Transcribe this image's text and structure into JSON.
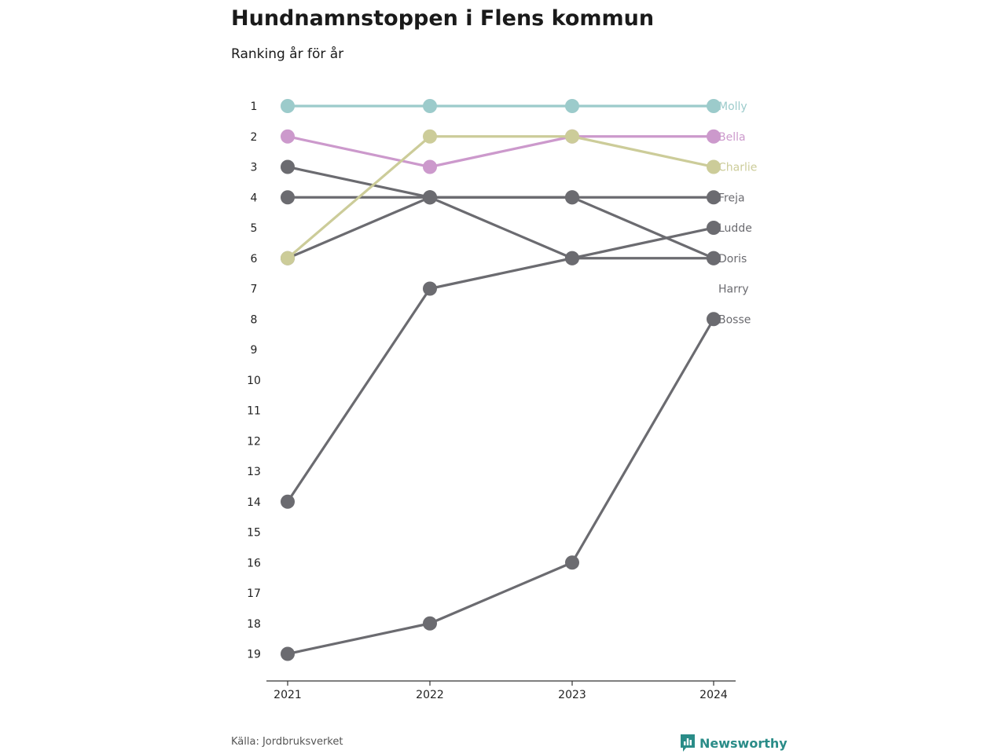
{
  "chart_data": {
    "type": "line",
    "title": "Hundnamnstoppen i Flens kommun",
    "subtitle": "Ranking år för år",
    "source": "Källa: Jordbruksverket",
    "brand": "Newsworthy",
    "x": [
      "2021",
      "2022",
      "2023",
      "2024"
    ],
    "y_ticks": [
      "1",
      "2",
      "3",
      "4",
      "5",
      "6",
      "7",
      "8",
      "9",
      "10",
      "11",
      "12",
      "13",
      "14",
      "15",
      "16",
      "17",
      "18",
      "19"
    ],
    "ylim": [
      1,
      19
    ],
    "y_inverted": true,
    "grid": false,
    "series": [
      {
        "name": "Molly",
        "values": [
          1,
          1,
          1,
          1
        ],
        "color": "#9ccbcb"
      },
      {
        "name": "Bella",
        "values": [
          2,
          3,
          2,
          2
        ],
        "color": "#cc99cc"
      },
      {
        "name": "Charlie",
        "values": [
          6,
          2,
          2,
          3
        ],
        "color": "#cccc99"
      },
      {
        "name": "Freja",
        "values": [
          4,
          4,
          4,
          4
        ],
        "color": "#6b6b70"
      },
      {
        "name": "Ludde",
        "values": [
          14,
          7,
          6,
          5
        ],
        "color": "#6b6b70"
      },
      {
        "name": "Doris",
        "values": [
          3,
          4,
          6,
          6
        ],
        "color": "#6b6b70"
      },
      {
        "name": "Harry",
        "values": [
          6,
          4,
          4,
          6
        ],
        "color": "#6b6b70"
      },
      {
        "name": "Bosse",
        "values": [
          19,
          18,
          16,
          8
        ],
        "color": "#6b6b70"
      }
    ]
  }
}
